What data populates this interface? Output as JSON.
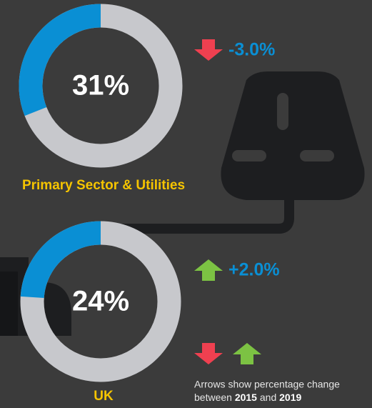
{
  "chart_data": [
    {
      "type": "donut",
      "title": "Primary Sector & Utilities",
      "values": [
        31
      ],
      "value_labels": [
        "31%"
      ],
      "ylim": [
        0,
        100
      ],
      "color": "#0a8fd4",
      "track_color": "#c7c8cc",
      "change": -3,
      "change_label": "-3.0%"
    },
    {
      "type": "donut",
      "title": "UK",
      "values": [
        24
      ],
      "value_labels": [
        "24%"
      ],
      "ylim": [
        0,
        100
      ],
      "color": "#0a8fd4",
      "track_color": "#c7c8cc",
      "change": 2,
      "change_label": "+2.0%"
    }
  ],
  "legend": {
    "note": [
      "Arrows show percentage change",
      "between",
      "2015",
      "and",
      "2019"
    ],
    "decrease_color": "#ef4050",
    "increase_color": "#7cc243"
  }
}
